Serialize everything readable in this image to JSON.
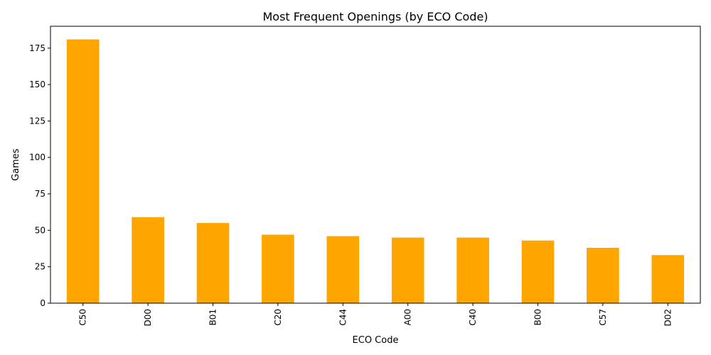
{
  "chart_data": {
    "type": "bar",
    "title": "Most Frequent Openings (by ECO Code)",
    "xlabel": "ECO Code",
    "ylabel": "Games",
    "categories": [
      "C50",
      "D00",
      "B01",
      "C20",
      "C44",
      "A00",
      "C40",
      "B00",
      "C57",
      "D02"
    ],
    "values": [
      181,
      59,
      55,
      47,
      46,
      45,
      45,
      43,
      38,
      33
    ],
    "ylim": [
      0,
      190
    ],
    "yticks": [
      0,
      25,
      50,
      75,
      100,
      125,
      150,
      175
    ],
    "grid": false,
    "legend": "none",
    "bar_color": "#FFA500"
  }
}
